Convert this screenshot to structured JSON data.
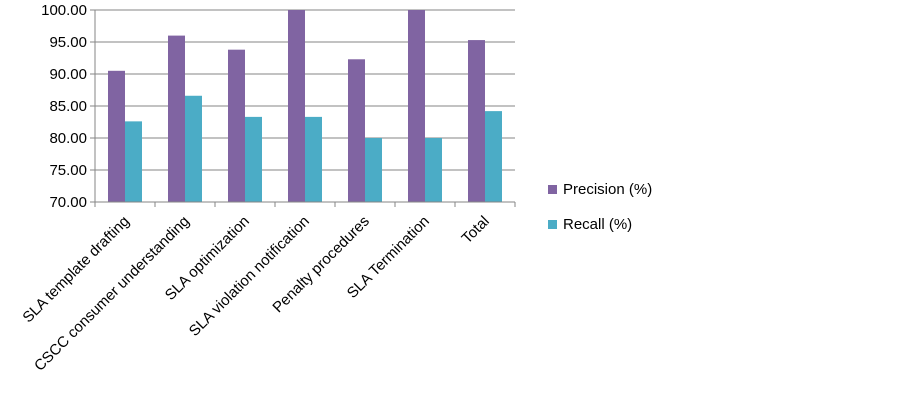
{
  "chart_data": {
    "type": "bar",
    "categories": [
      "SLA template drafting",
      "CSCC consumer understanding",
      "SLA optimization",
      "SLA violation notification",
      "Penalty procedures",
      "SLA Termination",
      "Total"
    ],
    "series": [
      {
        "name": "Precision (%)",
        "color": "#8064a2",
        "values": [
          90.5,
          96.0,
          93.8,
          100.0,
          92.3,
          100.0,
          95.3
        ]
      },
      {
        "name": "Recall (%)",
        "color": "#4bacc6",
        "values": [
          82.6,
          86.6,
          83.3,
          83.3,
          80.0,
          80.0,
          84.2
        ]
      }
    ],
    "ylim": [
      70,
      100
    ],
    "yticks": [
      "100.00",
      "95.00",
      "90.00",
      "85.00",
      "80.00",
      "75.00",
      "70.00"
    ],
    "grid": true,
    "legend_position": "right"
  }
}
